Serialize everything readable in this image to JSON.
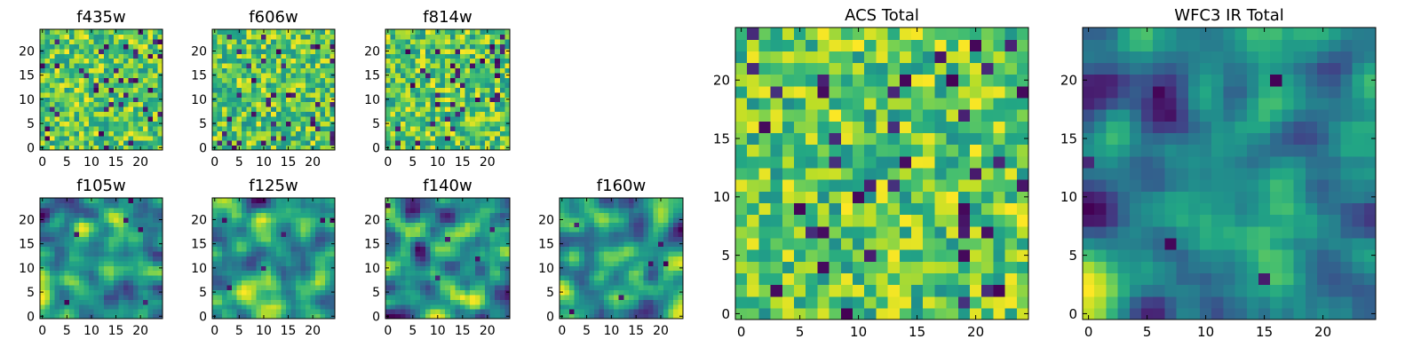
{
  "chart_data": [
    {
      "type": "heatmap",
      "title": "f435w",
      "grid": false,
      "colormap": "viridis",
      "shape": [
        25,
        25
      ],
      "xlim": [
        -0.5,
        24.5
      ],
      "ylim": [
        -0.5,
        24.5
      ],
      "xticks": [
        "0",
        "5",
        "10",
        "15",
        "20"
      ],
      "yticks": [
        "0",
        "5",
        "10",
        "15",
        "20"
      ],
      "seed": 101,
      "pattern": "noise"
    },
    {
      "type": "heatmap",
      "title": "f606w",
      "grid": false,
      "colormap": "viridis",
      "shape": [
        25,
        25
      ],
      "xlim": [
        -0.5,
        24.5
      ],
      "ylim": [
        -0.5,
        24.5
      ],
      "xticks": [
        "0",
        "5",
        "10",
        "15",
        "20"
      ],
      "yticks": [
        "0",
        "5",
        "10",
        "15",
        "20"
      ],
      "seed": 202,
      "pattern": "noise"
    },
    {
      "type": "heatmap",
      "title": "f814w",
      "grid": false,
      "colormap": "viridis",
      "shape": [
        25,
        25
      ],
      "xlim": [
        -0.5,
        24.5
      ],
      "ylim": [
        -0.5,
        24.5
      ],
      "xticks": [
        "0",
        "5",
        "10",
        "15",
        "20"
      ],
      "yticks": [
        "0",
        "5",
        "10",
        "15",
        "20"
      ],
      "seed": 303,
      "pattern": "noise"
    },
    {
      "type": "heatmap",
      "title": "f105w",
      "grid": false,
      "colormap": "viridis",
      "shape": [
        25,
        25
      ],
      "xlim": [
        -0.5,
        24.5
      ],
      "ylim": [
        -0.5,
        24.5
      ],
      "xticks": [
        "0",
        "5",
        "10",
        "15",
        "20"
      ],
      "yticks": [
        "0",
        "5",
        "10",
        "15",
        "20"
      ],
      "seed": 404,
      "pattern": "smooth"
    },
    {
      "type": "heatmap",
      "title": "f125w",
      "grid": false,
      "colormap": "viridis",
      "shape": [
        25,
        25
      ],
      "xlim": [
        -0.5,
        24.5
      ],
      "ylim": [
        -0.5,
        24.5
      ],
      "xticks": [
        "0",
        "5",
        "10",
        "15",
        "20"
      ],
      "yticks": [
        "0",
        "5",
        "10",
        "15",
        "20"
      ],
      "seed": 505,
      "pattern": "smooth"
    },
    {
      "type": "heatmap",
      "title": "f140w",
      "grid": false,
      "colormap": "viridis",
      "shape": [
        25,
        25
      ],
      "xlim": [
        -0.5,
        24.5
      ],
      "ylim": [
        -0.5,
        24.5
      ],
      "xticks": [
        "0",
        "5",
        "10",
        "15",
        "20"
      ],
      "yticks": [
        "0",
        "5",
        "10",
        "15",
        "20"
      ],
      "seed": 606,
      "pattern": "smooth"
    },
    {
      "type": "heatmap",
      "title": "f160w",
      "grid": false,
      "colormap": "viridis",
      "shape": [
        25,
        25
      ],
      "xlim": [
        -0.5,
        24.5
      ],
      "ylim": [
        -0.5,
        24.5
      ],
      "xticks": [
        "0",
        "5",
        "10",
        "15",
        "20"
      ],
      "yticks": [
        "0",
        "5",
        "10",
        "15",
        "20"
      ],
      "seed": 707,
      "pattern": "smooth"
    },
    {
      "type": "heatmap",
      "title": "ACS Total",
      "grid": false,
      "colormap": "viridis",
      "shape": [
        25,
        25
      ],
      "xlim": [
        -0.5,
        24.5
      ],
      "ylim": [
        -0.5,
        24.5
      ],
      "xticks": [
        "0",
        "5",
        "10",
        "15",
        "20"
      ],
      "yticks": [
        "0",
        "5",
        "10",
        "15",
        "20"
      ],
      "seed": 808,
      "pattern": "noise"
    },
    {
      "type": "heatmap",
      "title": "WFC3 IR Total",
      "grid": false,
      "colormap": "viridis",
      "shape": [
        25,
        25
      ],
      "xlim": [
        -0.5,
        24.5
      ],
      "ylim": [
        -0.5,
        24.5
      ],
      "xticks": [
        "0",
        "5",
        "10",
        "15",
        "20"
      ],
      "yticks": [
        "0",
        "5",
        "10",
        "15",
        "20"
      ],
      "seed": 909,
      "pattern": "smooth"
    }
  ]
}
